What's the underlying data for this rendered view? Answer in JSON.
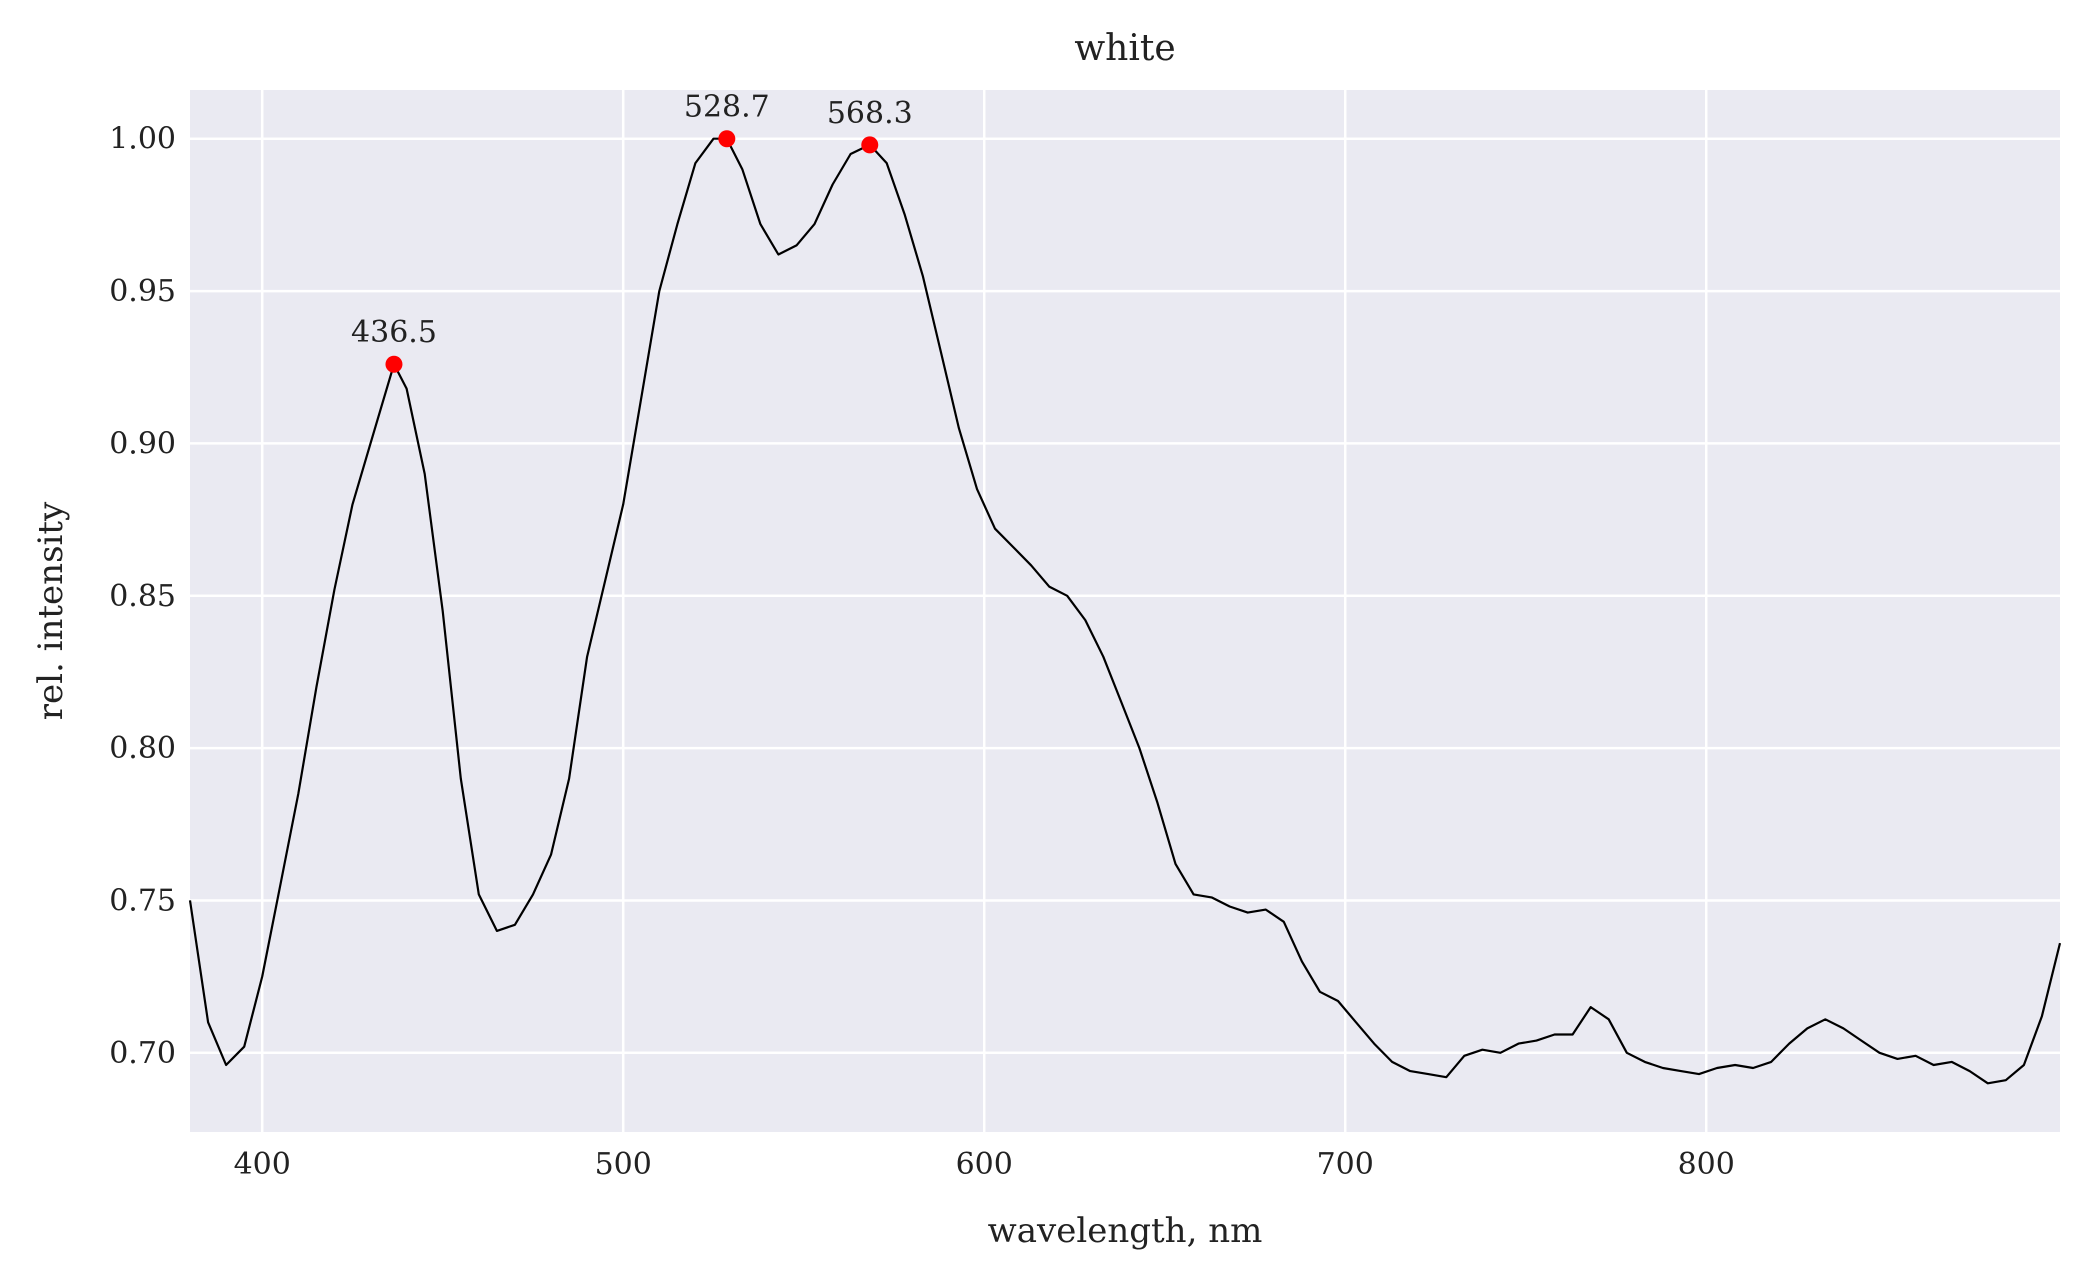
{
  "chart_data": {
    "type": "line",
    "title": "white",
    "xlabel": "wavelength, nm",
    "ylabel": "rel. intensity",
    "xlim": [
      380,
      898
    ],
    "ylim": [
      0.674,
      1.016
    ],
    "grid": true,
    "x_ticks": [
      400,
      500,
      600,
      700,
      800
    ],
    "y_ticks": [
      0.7,
      0.75,
      0.8,
      0.85,
      0.9,
      0.95,
      1.0
    ],
    "x_tick_labels": [
      "400",
      "500",
      "600",
      "700",
      "800"
    ],
    "y_tick_labels": [
      "0.70",
      "0.75",
      "0.80",
      "0.85",
      "0.90",
      "0.95",
      "1.00"
    ],
    "colors": {
      "background": "#eaeaf2",
      "grid": "#ffffff",
      "line": "#000000",
      "peak": "#ff0000"
    },
    "series": [
      {
        "x": [
          380,
          385,
          390,
          395,
          400,
          405,
          410,
          415,
          420,
          425,
          430,
          436.5,
          440,
          445,
          450,
          455,
          460,
          465,
          470,
          475,
          480,
          485,
          490,
          495,
          500,
          505,
          510,
          515,
          520,
          525,
          528.7,
          533,
          538,
          543,
          548,
          553,
          558,
          563,
          568.3,
          573,
          578,
          583,
          588,
          593,
          598,
          603,
          608,
          613,
          618,
          623,
          628,
          633,
          638,
          643,
          648,
          653,
          658,
          663,
          668,
          673,
          678,
          683,
          688,
          693,
          698,
          703,
          708,
          713,
          718,
          723,
          728,
          733,
          738,
          743,
          748,
          753,
          758,
          763,
          768,
          773,
          778,
          783,
          788,
          793,
          798,
          803,
          808,
          813,
          818,
          823,
          828,
          833,
          838,
          843,
          848,
          853,
          858,
          863,
          868,
          873,
          878,
          883,
          888,
          893,
          898
        ],
        "values": [
          0.75,
          0.71,
          0.696,
          0.702,
          0.725,
          0.755,
          0.785,
          0.82,
          0.852,
          0.88,
          0.9,
          0.926,
          0.918,
          0.89,
          0.845,
          0.79,
          0.752,
          0.74,
          0.742,
          0.752,
          0.765,
          0.79,
          0.83,
          0.855,
          0.88,
          0.915,
          0.95,
          0.972,
          0.992,
          1.0,
          1.0,
          0.99,
          0.972,
          0.962,
          0.965,
          0.972,
          0.985,
          0.995,
          0.998,
          0.992,
          0.975,
          0.955,
          0.93,
          0.905,
          0.885,
          0.872,
          0.866,
          0.86,
          0.853,
          0.85,
          0.842,
          0.83,
          0.815,
          0.8,
          0.782,
          0.762,
          0.752,
          0.751,
          0.748,
          0.746,
          0.747,
          0.743,
          0.73,
          0.72,
          0.717,
          0.71,
          0.703,
          0.697,
          0.694,
          0.693,
          0.692,
          0.699,
          0.701,
          0.7,
          0.703,
          0.704,
          0.706,
          0.706,
          0.715,
          0.711,
          0.7,
          0.697,
          0.695,
          0.694,
          0.693,
          0.695,
          0.696,
          0.695,
          0.697,
          0.703,
          0.708,
          0.711,
          0.708,
          0.704,
          0.7,
          0.698,
          0.699,
          0.696,
          0.697,
          0.694,
          0.69,
          0.691,
          0.696,
          0.712,
          0.736
        ]
      }
    ],
    "peaks": [
      {
        "x": 436.5,
        "y": 0.926,
        "label": "436.5"
      },
      {
        "x": 528.7,
        "y": 1.0,
        "label": "528.7"
      },
      {
        "x": 568.3,
        "y": 0.998,
        "label": "568.3"
      }
    ]
  }
}
